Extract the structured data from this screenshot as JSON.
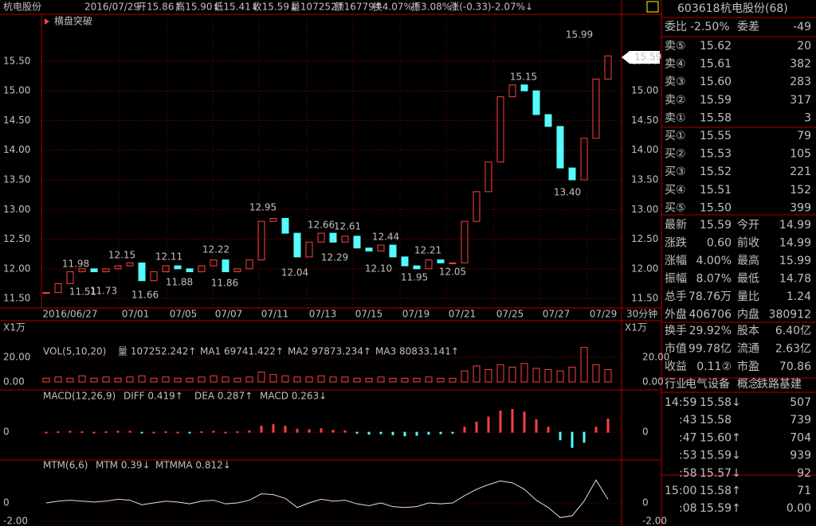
{
  "header": {
    "name": "杭电股份",
    "date": "2016/07/29",
    "items": [
      "开15.86↑",
      "高15.90↓",
      "低15.41↓",
      "收15.59↓",
      "量107252↑",
      "额16779↑",
      "换4.07%↑",
      "振3.08%↑",
      "涨(-0.33)-2.07%↓"
    ],
    "signal": "横盘突破"
  },
  "chart": {
    "type": "candlestick",
    "closes": [
      11.6,
      11.75,
      11.95,
      12.0,
      11.95,
      12.0,
      12.05,
      12.1,
      11.8,
      11.95,
      12.05,
      12.0,
      11.95,
      12.05,
      12.15,
      11.95,
      12.0,
      12.15,
      12.8,
      12.85,
      12.6,
      12.2,
      12.45,
      12.6,
      12.45,
      12.55,
      12.35,
      12.3,
      12.4,
      12.2,
      12.05,
      12.0,
      12.15,
      12.1,
      12.1,
      12.8,
      13.3,
      13.8,
      14.9,
      15.1,
      15.0,
      14.6,
      14.4,
      13.7,
      13.5,
      14.2,
      15.2,
      15.59
    ],
    "ylim": [
      11.34,
      16.29
    ],
    "yticks": [
      {
        "value": 11.5,
        "label": "11.50"
      },
      {
        "value": 12,
        "label": "12.00"
      },
      {
        "value": 12.5,
        "label": "12.50"
      },
      {
        "value": 13,
        "label": "13.00"
      },
      {
        "value": 13.5,
        "label": "13.50"
      },
      {
        "value": 14,
        "label": "14.00"
      },
      {
        "value": 14.5,
        "label": "14.50"
      },
      {
        "value": 15,
        "label": "15.00"
      },
      {
        "value": 15.5,
        "label": "15.50"
      }
    ],
    "annotations": [
      "15.99",
      "15.15",
      "13.40",
      "12.95",
      "12.66",
      "12.61",
      "12.44",
      "12.21",
      "12.15",
      "12.11",
      "12.22",
      "11.98",
      "12.04",
      "12.29",
      "12.10",
      "11.95",
      "12.05",
      "11.88",
      "11.86",
      "11.66",
      "11.51",
      "11.73"
    ],
    "last_price": "15.59",
    "dates": [
      "2016/06/27",
      "07/01",
      "07/05",
      "07/07",
      "07/11",
      "07/13",
      "07/15",
      "07/19",
      "07/21",
      "07/25",
      "07/27",
      "07/29"
    ],
    "period": "30分钟"
  },
  "volume": {
    "unit": "X1万",
    "title": "VOL(5,10,20)",
    "items": [
      "量 107252.242↑",
      "MA1 69741.422↑",
      "MA2 97873.234↑",
      "MA3 80833.141↑"
    ],
    "values": [
      3,
      4,
      3,
      5,
      3,
      4,
      3,
      4,
      5,
      3,
      4,
      3,
      3,
      4,
      5,
      4,
      3,
      4,
      8,
      6,
      5,
      4,
      4,
      5,
      4,
      4,
      3,
      3,
      4,
      3,
      3,
      3,
      4,
      3,
      3,
      9,
      13,
      10,
      14,
      12,
      15,
      11,
      10,
      9,
      12,
      28,
      14,
      10
    ],
    "ylim": [
      -6.45,
      38.7
    ],
    "yticks": [
      {
        "value": 0,
        "label": "0.00"
      },
      {
        "value": 20,
        "label": "20.00"
      }
    ]
  },
  "macd": {
    "title": "MACD(12,26,9)",
    "items": [
      "DIFF 0.419↑",
      "DEA 0.287↑",
      "MACD 0.263↓"
    ],
    "values": [
      0,
      0.01,
      0.02,
      0.01,
      0,
      0.01,
      0.02,
      0.02,
      -0.01,
      0,
      0.01,
      0,
      -0.01,
      0.01,
      0.02,
      0,
      0.01,
      0.03,
      0.12,
      0.15,
      0.12,
      0.06,
      0.05,
      0.07,
      0.04,
      0.03,
      -0.02,
      -0.04,
      -0.03,
      -0.05,
      -0.07,
      -0.06,
      -0.04,
      -0.03,
      -0.02,
      0.1,
      0.2,
      0.3,
      0.42,
      0.45,
      0.4,
      0.25,
      0.1,
      -0.15,
      -0.3,
      -0.2,
      0.1,
      0.26
    ],
    "ylim": [
      -0.5,
      0.6
    ],
    "yticks": [
      0
    ]
  },
  "mtm": {
    "title": "MTM(6,6)",
    "items": [
      "MTM 0.39↓",
      "MTMMA 0.812↓"
    ],
    "values": [
      0,
      0.2,
      0.3,
      0.2,
      0.1,
      0.2,
      0.4,
      0.3,
      -0.2,
      0,
      0.2,
      0.1,
      -0.1,
      0.2,
      0.3,
      -0.1,
      0,
      0.3,
      1.0,
      0.9,
      0.5,
      -0.5,
      0,
      0.4,
      0.2,
      0.3,
      -0.1,
      -0.3,
      0,
      -0.4,
      -0.5,
      -0.4,
      0,
      -0.1,
      0,
      0.8,
      1.5,
      2.0,
      2.4,
      2.2,
      1.5,
      0.3,
      -0.5,
      -1.6,
      -1.4,
      0.2,
      2.5,
      0.39
    ],
    "ylim": [
      -2.52,
      3.22
    ],
    "yticks": [
      0,
      {
        "value": -2,
        "label": "-2.00"
      }
    ]
  },
  "quote": {
    "code": "603618",
    "name": "杭电股份(68)",
    "wb_label": "委比",
    "wb": "-2.50%",
    "wc_label": "委差",
    "wc": "-49",
    "sell": [
      [
        "卖⑤",
        "15.62",
        "20"
      ],
      [
        "卖④",
        "15.61",
        "382"
      ],
      [
        "卖③",
        "15.60",
        "283"
      ],
      [
        "卖②",
        "15.59",
        "317"
      ],
      [
        "卖①",
        "15.58",
        "3"
      ]
    ],
    "buy": [
      [
        "买①",
        "15.55",
        "79"
      ],
      [
        "买②",
        "15.53",
        "105"
      ],
      [
        "买③",
        "15.52",
        "221"
      ],
      [
        "买④",
        "15.51",
        "152"
      ],
      [
        "买⑤",
        "15.50",
        "399"
      ]
    ],
    "stats": [
      [
        "最新",
        "15.59",
        "今开",
        "14.99"
      ],
      [
        "涨跌",
        "0.60",
        "前收",
        "14.99"
      ],
      [
        "涨幅",
        "4.00%",
        "最高",
        "15.99"
      ],
      [
        "振幅",
        "8.07%",
        "最低",
        "14.78"
      ],
      [
        "总手",
        "78.76万",
        "量比",
        "1.24"
      ],
      [
        "外盘",
        "406706",
        "内盘",
        "380912"
      ]
    ],
    "extra": [
      [
        "换手",
        "29.92%",
        "股本",
        "6.40亿"
      ],
      [
        "市值",
        "99.78亿",
        "流通",
        "2.63亿"
      ],
      [
        "收益",
        "0.11②",
        "市盈",
        "70.86"
      ]
    ],
    "industry": [
      "行业",
      "电气设备",
      "概念",
      "铁路基建"
    ],
    "ticks": [
      [
        "14:59",
        "15.58↓",
        "507"
      ],
      [
        ":43",
        "15.58",
        "739"
      ],
      [
        ":47",
        "15.60↑",
        "704"
      ],
      [
        ":53",
        "15.59↓",
        "939"
      ],
      [
        ":58",
        "15.57↓",
        "92"
      ],
      [
        "15:00",
        "15.58↑",
        "71"
      ],
      [
        ":08",
        "15.59↑",
        "0.00"
      ]
    ]
  }
}
